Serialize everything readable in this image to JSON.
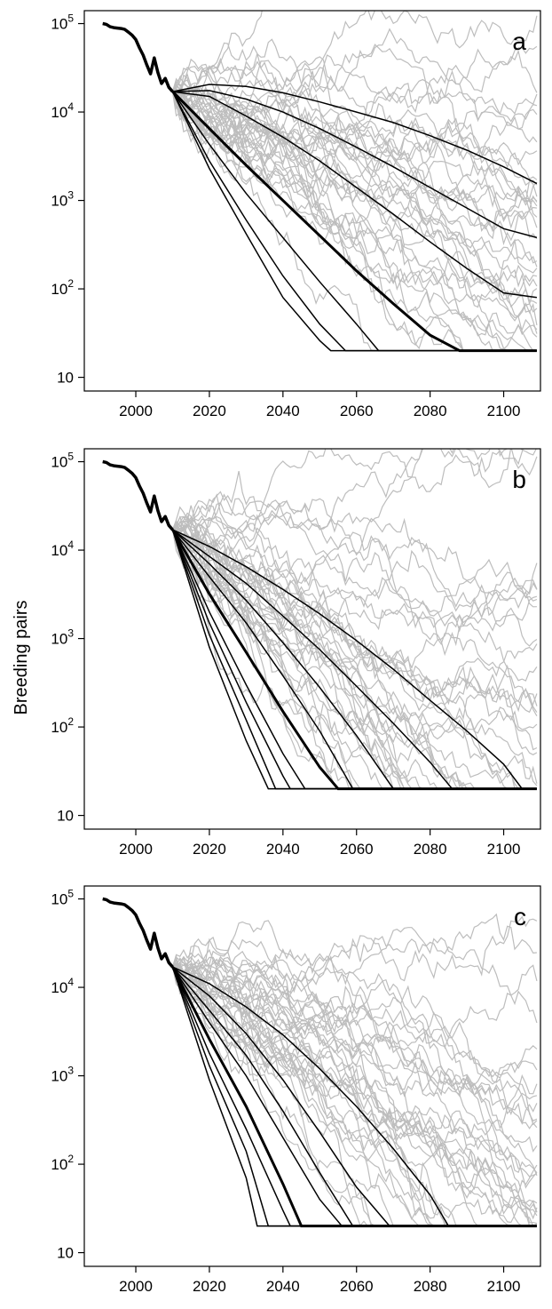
{
  "figure": {
    "ylabel": "Breeding pairs"
  },
  "chart_data": [
    {
      "type": "line",
      "panel_label": "a",
      "xlabel": "",
      "ylabel": "Breeding pairs",
      "xlim": [
        1986,
        2110
      ],
      "ylim": [
        7,
        140000
      ],
      "yscale": "log",
      "xticks": [
        "2000",
        "2020",
        "2040",
        "2060",
        "2080",
        "2100"
      ],
      "yticks": [
        "10",
        "10^2",
        "10^3",
        "10^4",
        "10^5"
      ],
      "observed": {
        "x": [
          1991,
          1992,
          1993,
          1994,
          1995,
          1996,
          1997,
          1998,
          1999,
          2000,
          2001,
          2002,
          2003,
          2004,
          2005,
          2006,
          2007,
          2008,
          2009,
          2010
        ],
        "y": [
          100000,
          98000,
          92000,
          90000,
          89000,
          88000,
          86000,
          80000,
          74000,
          66000,
          53000,
          44000,
          34000,
          27000,
          41000,
          28000,
          21000,
          24000,
          19000,
          17000
        ]
      },
      "quantile_lines": [
        {
          "x": [
            2010,
            2020,
            2030,
            2040,
            2050,
            2060,
            2070,
            2080,
            2090,
            2100,
            2109
          ],
          "y": [
            17000,
            20500,
            19500,
            16500,
            13000,
            10000,
            7600,
            5400,
            3700,
            2400,
            1550
          ]
        },
        {
          "x": [
            2010,
            2020,
            2030,
            2040,
            2050,
            2060,
            2070,
            2080,
            2090,
            2100,
            2109
          ],
          "y": [
            17000,
            17500,
            14000,
            10000,
            6500,
            4000,
            2400,
            1400,
            820,
            480,
            380
          ]
        },
        {
          "x": [
            2010,
            2020,
            2030,
            2040,
            2050,
            2060,
            2070,
            2080,
            2090,
            2100,
            2109
          ],
          "y": [
            17000,
            15000,
            9000,
            5200,
            2800,
            1400,
            700,
            340,
            170,
            90,
            80
          ]
        },
        {
          "x": [
            2010,
            2020,
            2030,
            2040,
            2050,
            2060,
            2070,
            2080,
            2088,
            2109
          ],
          "y": [
            17000,
            6500,
            2500,
            1000,
            400,
            160,
            68,
            30,
            20,
            20
          ],
          "emphasis": true
        },
        {
          "x": [
            2010,
            2020,
            2030,
            2040,
            2050,
            2060,
            2066,
            2109
          ],
          "y": [
            17000,
            4300,
            1200,
            380,
            120,
            40,
            20,
            20
          ]
        },
        {
          "x": [
            2010,
            2020,
            2030,
            2040,
            2050,
            2057,
            2109
          ],
          "y": [
            17000,
            2800,
            600,
            140,
            40,
            20,
            20
          ]
        },
        {
          "x": [
            2010,
            2020,
            2030,
            2040,
            2050,
            2053,
            2109
          ],
          "y": [
            17000,
            2300,
            420,
            80,
            26,
            20,
            20
          ]
        }
      ],
      "simulation_count": 40,
      "colors": {
        "observed": "#000000",
        "quantile": "#000000",
        "simulation": "#bdbdbd"
      }
    },
    {
      "type": "line",
      "panel_label": "b",
      "xlabel": "",
      "ylabel": "Breeding pairs",
      "xlim": [
        1986,
        2110
      ],
      "ylim": [
        7,
        140000
      ],
      "yscale": "log",
      "xticks": [
        "2000",
        "2020",
        "2040",
        "2060",
        "2080",
        "2100"
      ],
      "yticks": [
        "10",
        "10^2",
        "10^3",
        "10^4",
        "10^5"
      ],
      "observed": {
        "x": [
          1991,
          1992,
          1993,
          1994,
          1995,
          1996,
          1997,
          1998,
          1999,
          2000,
          2001,
          2002,
          2003,
          2004,
          2005,
          2006,
          2007,
          2008,
          2009,
          2010
        ],
        "y": [
          100000,
          98000,
          92000,
          90000,
          89000,
          88000,
          86000,
          80000,
          74000,
          66000,
          53000,
          44000,
          34000,
          27000,
          41000,
          28000,
          21000,
          24000,
          19000,
          17000
        ]
      },
      "quantile_lines": [
        {
          "x": [
            2010,
            2020,
            2030,
            2040,
            2050,
            2060,
            2070,
            2080,
            2090,
            2100,
            2105,
            2109
          ],
          "y": [
            17000,
            11000,
            6500,
            3600,
            1900,
            950,
            450,
            200,
            90,
            38,
            20,
            20
          ]
        },
        {
          "x": [
            2010,
            2020,
            2030,
            2040,
            2050,
            2060,
            2070,
            2080,
            2086,
            2109
          ],
          "y": [
            17000,
            8500,
            4200,
            1800,
            750,
            290,
            110,
            40,
            20,
            20
          ]
        },
        {
          "x": [
            2010,
            2020,
            2030,
            2040,
            2050,
            2060,
            2070,
            2109
          ],
          "y": [
            17000,
            7000,
            2700,
            900,
            280,
            80,
            20,
            20
          ]
        },
        {
          "x": [
            2010,
            2020,
            2030,
            2040,
            2050,
            2059,
            2109
          ],
          "y": [
            17000,
            5000,
            1500,
            380,
            90,
            20,
            20
          ]
        },
        {
          "x": [
            2010,
            2020,
            2030,
            2040,
            2050,
            2055,
            2109
          ],
          "y": [
            17000,
            3200,
            700,
            150,
            35,
            20,
            20
          ],
          "emphasis": true
        },
        {
          "x": [
            2010,
            2020,
            2030,
            2040,
            2046,
            2109
          ],
          "y": [
            17000,
            2000,
            300,
            50,
            20,
            20
          ]
        },
        {
          "x": [
            2010,
            2020,
            2030,
            2040,
            2042,
            2109
          ],
          "y": [
            17000,
            1500,
            190,
            28,
            20,
            20
          ]
        },
        {
          "x": [
            2010,
            2020,
            2030,
            2038,
            2109
          ],
          "y": [
            17000,
            1100,
            120,
            20,
            20
          ]
        },
        {
          "x": [
            2010,
            2020,
            2030,
            2036,
            2109
          ],
          "y": [
            17000,
            800,
            70,
            20,
            20
          ]
        }
      ],
      "simulation_count": 40,
      "colors": {
        "observed": "#000000",
        "quantile": "#000000",
        "simulation": "#bdbdbd"
      }
    },
    {
      "type": "line",
      "panel_label": "c",
      "xlabel": "",
      "ylabel": "Breeding pairs",
      "xlim": [
        1986,
        2110
      ],
      "ylim": [
        7,
        140000
      ],
      "yscale": "log",
      "xticks": [
        "2000",
        "2020",
        "2040",
        "2060",
        "2080",
        "2100"
      ],
      "yticks": [
        "10",
        "10^2",
        "10^3",
        "10^4",
        "10^5"
      ],
      "observed": {
        "x": [
          1991,
          1992,
          1993,
          1994,
          1995,
          1996,
          1997,
          1998,
          1999,
          2000,
          2001,
          2002,
          2003,
          2004,
          2005,
          2006,
          2007,
          2008,
          2009,
          2010
        ],
        "y": [
          100000,
          98000,
          92000,
          90000,
          89000,
          88000,
          86000,
          80000,
          74000,
          66000,
          53000,
          44000,
          34000,
          27000,
          41000,
          28000,
          21000,
          24000,
          19000,
          17000
        ]
      },
      "quantile_lines": [
        {
          "x": [
            2010,
            2020,
            2030,
            2040,
            2050,
            2060,
            2070,
            2080,
            2085,
            2109
          ],
          "y": [
            17000,
            11000,
            6000,
            2900,
            1200,
            450,
            150,
            45,
            20,
            20
          ]
        },
        {
          "x": [
            2010,
            2020,
            2030,
            2040,
            2050,
            2060,
            2069,
            2109
          ],
          "y": [
            17000,
            8000,
            3000,
            900,
            230,
            55,
            20,
            20
          ]
        },
        {
          "x": [
            2010,
            2020,
            2030,
            2040,
            2050,
            2059,
            2109
          ],
          "y": [
            17000,
            5500,
            1700,
            400,
            80,
            20,
            20
          ]
        },
        {
          "x": [
            2010,
            2020,
            2030,
            2040,
            2050,
            2056,
            2109
          ],
          "y": [
            17000,
            4000,
            1000,
            200,
            40,
            20,
            20
          ]
        },
        {
          "x": [
            2010,
            2020,
            2030,
            2040,
            2045,
            2109
          ],
          "y": [
            17000,
            2600,
            450,
            60,
            20,
            20
          ],
          "emphasis": true
        },
        {
          "x": [
            2010,
            2020,
            2030,
            2040,
            2042,
            2109
          ],
          "y": [
            17000,
            1800,
            250,
            30,
            20,
            20
          ]
        },
        {
          "x": [
            2010,
            2020,
            2030,
            2036,
            2109
          ],
          "y": [
            17000,
            1300,
            140,
            20,
            20
          ]
        },
        {
          "x": [
            2010,
            2020,
            2030,
            2033,
            2109
          ],
          "y": [
            17000,
            900,
            70,
            20,
            20
          ]
        }
      ],
      "simulation_count": 40,
      "colors": {
        "observed": "#000000",
        "quantile": "#000000",
        "simulation": "#bdbdbd"
      }
    }
  ]
}
